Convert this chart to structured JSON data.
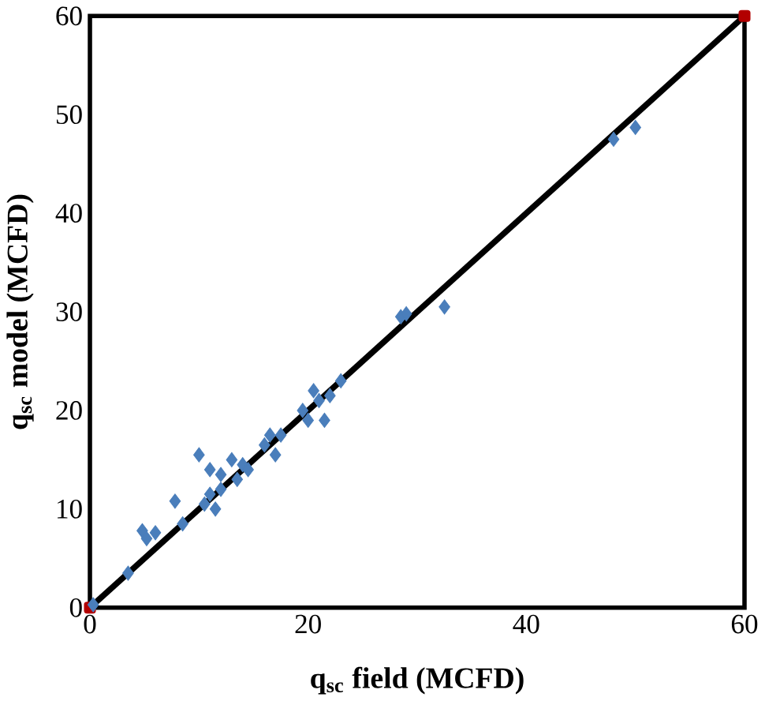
{
  "chart_data": {
    "type": "scatter",
    "xlabel": "q$_{sc}$ field (MCFD)",
    "ylabel": "q$_{sc}$ model (MCFD)",
    "xlim": [
      0,
      60
    ],
    "ylim": [
      0,
      60
    ],
    "xticks": [
      0,
      20,
      40,
      60
    ],
    "yticks": [
      0,
      10,
      20,
      30,
      40,
      50,
      60
    ],
    "grid": false,
    "marker": "diamond",
    "series": [
      {
        "color": "#4a7ebb",
        "x": [
          0.3,
          3.5,
          4.8,
          5.2,
          6,
          7.8,
          8.5,
          10,
          10.5,
          11,
          11,
          11.5,
          12,
          12,
          13,
          13.5,
          14,
          14.5,
          16,
          16.5,
          17,
          17.5,
          19.5,
          20,
          20.5,
          21,
          21.5,
          22,
          23,
          28.5,
          29,
          32.5,
          48,
          50
        ],
        "values": [
          0.3,
          3.5,
          7.8,
          7,
          7.6,
          10.8,
          8.5,
          15.5,
          10.5,
          14,
          11.5,
          10,
          13.5,
          12,
          15,
          13,
          14.5,
          14,
          16.5,
          17.5,
          15.5,
          17.5,
          20,
          19,
          22,
          21,
          19,
          21.5,
          23,
          29.5,
          29.8,
          30.5,
          47.5,
          48.7
        ]
      },
      {
        "type": "line",
        "color": "#000000",
        "marker": "square",
        "x": [
          0,
          60
        ],
        "values": [
          0,
          60
        ]
      }
    ]
  }
}
